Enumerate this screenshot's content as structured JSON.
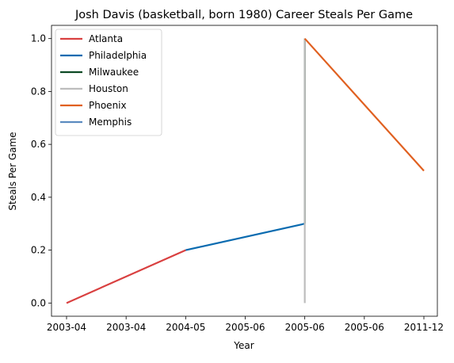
{
  "chart_data": {
    "type": "line",
    "title": "Josh Davis (basketball, born 1980) Career Steals Per Game",
    "xlabel": "Year",
    "ylabel": "Steals Per Game",
    "x_categories": [
      "2003-04",
      "2003-04",
      "2004-05",
      "2005-06",
      "2005-06",
      "2005-06",
      "2011-12"
    ],
    "ylim": [
      -0.05,
      1.05
    ],
    "yticks": [
      "0.0",
      "0.2",
      "0.4",
      "0.6",
      "0.8",
      "1.0"
    ],
    "grid": false,
    "legend_position": "upper-left",
    "series": [
      {
        "name": "Atlanta",
        "color": "#d94040",
        "points": [
          [
            0,
            0.0
          ],
          [
            2,
            0.2
          ]
        ]
      },
      {
        "name": "Philadelphia",
        "color": "#0a6bb0",
        "points": [
          [
            2,
            0.2
          ],
          [
            4,
            0.3
          ]
        ]
      },
      {
        "name": "Milwaukee",
        "color": "#0d4a24",
        "points": [
          [
            4,
            0.3
          ],
          [
            4,
            1.0
          ]
        ]
      },
      {
        "name": "Houston",
        "color": "#bdbdbd",
        "points": [
          [
            4,
            1.0
          ],
          [
            4,
            0.0
          ]
        ]
      },
      {
        "name": "Phoenix",
        "color": "#e06020",
        "points": [
          [
            4,
            1.0
          ],
          [
            6,
            0.5
          ]
        ]
      },
      {
        "name": "Memphis",
        "color": "#5b8bc0",
        "points": []
      }
    ]
  }
}
